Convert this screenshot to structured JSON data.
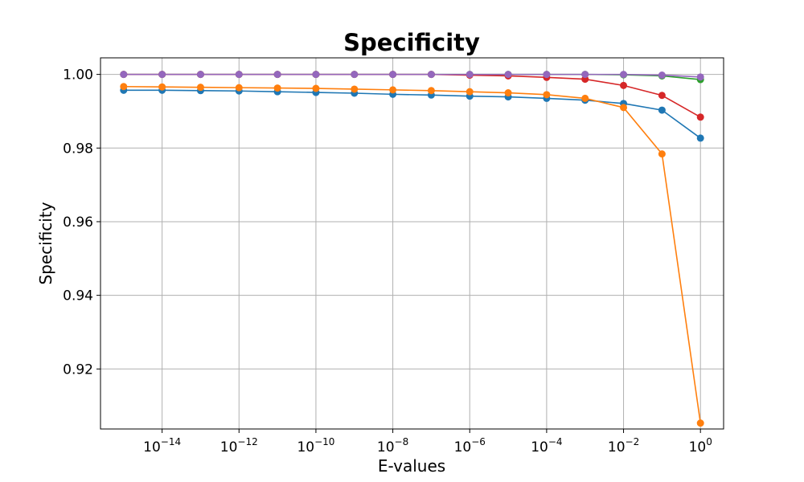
{
  "chart_data": {
    "type": "line",
    "title": "Specificity",
    "xlabel": "E-values",
    "ylabel": "Specificity",
    "xscale": "log",
    "x": [
      1e-15,
      1e-14,
      1e-13,
      1e-12,
      1e-11,
      1e-10,
      1e-09,
      1e-08,
      1e-07,
      1e-06,
      1e-05,
      0.0001,
      0.001,
      0.01,
      0.1,
      1
    ],
    "xlim": [
      2.5e-16,
      4
    ],
    "ylim": [
      0.9037,
      1.0045
    ],
    "grid": true,
    "x_ticks": [
      {
        "value": 1e-14,
        "base": "10",
        "exp": "−14"
      },
      {
        "value": 1e-12,
        "base": "10",
        "exp": "−12"
      },
      {
        "value": 1e-10,
        "base": "10",
        "exp": "−10"
      },
      {
        "value": 1e-08,
        "base": "10",
        "exp": "−8"
      },
      {
        "value": 1e-06,
        "base": "10",
        "exp": "−6"
      },
      {
        "value": 0.0001,
        "base": "10",
        "exp": "−4"
      },
      {
        "value": 0.01,
        "base": "10",
        "exp": "−2"
      },
      {
        "value": 1,
        "base": "10",
        "exp": "0"
      }
    ],
    "y_ticks": [
      {
        "value": 0.92,
        "label": "0.92"
      },
      {
        "value": 0.94,
        "label": "0.94"
      },
      {
        "value": 0.96,
        "label": "0.96"
      },
      {
        "value": 0.98,
        "label": "0.98"
      },
      {
        "value": 1.0,
        "label": "1.00"
      }
    ],
    "series": [
      {
        "color": "#1f77b4",
        "values": [
          0.9957,
          0.9957,
          0.9956,
          0.9955,
          0.9953,
          0.9951,
          0.9949,
          0.9946,
          0.9944,
          0.9941,
          0.9939,
          0.9935,
          0.993,
          0.9921,
          0.9903,
          0.9827
        ]
      },
      {
        "color": "#2ca02c",
        "values": [
          1.0,
          1.0,
          1.0,
          1.0,
          1.0,
          1.0,
          1.0,
          1.0,
          1.0,
          1.0,
          1.0,
          1.0,
          1.0,
          0.9999,
          0.9996,
          0.9986
        ]
      },
      {
        "color": "#d62728",
        "values": [
          1.0,
          1.0,
          1.0,
          1.0,
          1.0,
          1.0,
          1.0,
          1.0,
          1.0,
          0.9998,
          0.9996,
          0.9992,
          0.9987,
          0.997,
          0.9943,
          0.9884
        ]
      },
      {
        "color": "#ff7f0e",
        "values": [
          0.9967,
          0.9966,
          0.9965,
          0.9964,
          0.9963,
          0.9962,
          0.996,
          0.9958,
          0.9956,
          0.9953,
          0.995,
          0.9945,
          0.9935,
          0.991,
          0.9784,
          0.9053
        ]
      },
      {
        "color": "#9467bd",
        "values": [
          1.0,
          1.0,
          1.0,
          1.0,
          1.0,
          1.0,
          1.0,
          1.0,
          1.0,
          1.0,
          1.0,
          1.0,
          1.0,
          1.0,
          0.9998,
          0.9993
        ]
      }
    ]
  }
}
